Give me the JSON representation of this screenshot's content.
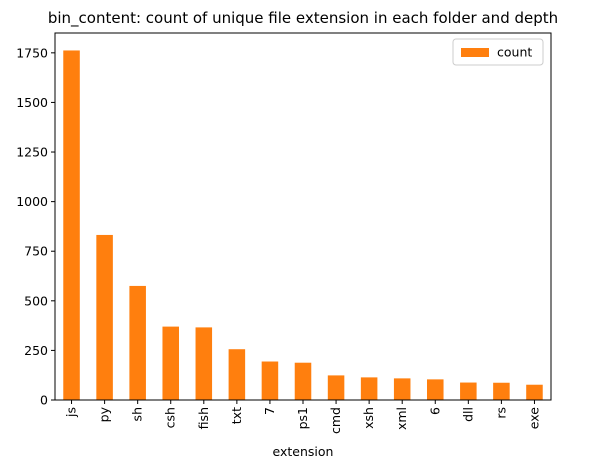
{
  "chart_data": {
    "type": "bar",
    "title": "bin_content: count of unique file extension in each folder and depth",
    "xlabel": "extension",
    "ylabel": "",
    "categories": [
      "js",
      "py",
      "sh",
      "csh",
      "fish",
      "txt",
      "7",
      "ps1",
      "cmd",
      "xsh",
      "xml",
      "6",
      "dll",
      "rs",
      "exe"
    ],
    "series": [
      {
        "name": "count",
        "color": "#ff7f0e",
        "values": [
          1762,
          832,
          575,
          370,
          366,
          256,
          194,
          188,
          124,
          114,
          109,
          104,
          88,
          87,
          77
        ]
      }
    ],
    "ylim": [
      0,
      1850
    ],
    "yticks": [
      0,
      250,
      500,
      750,
      1000,
      1250,
      1500,
      1750
    ],
    "legend": {
      "placement": "top-right",
      "entries": [
        "count"
      ]
    },
    "grid": false
  }
}
